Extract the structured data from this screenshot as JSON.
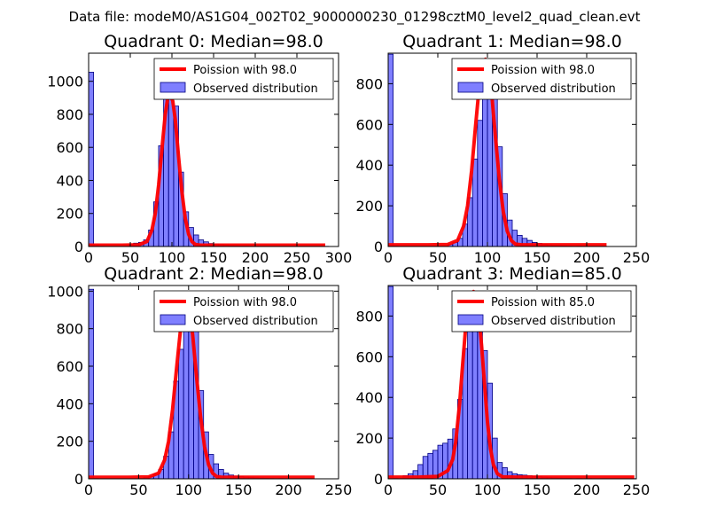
{
  "figure": {
    "suptitle": "Data file: modeM0/AS1G04_002T02_9000000230_01298cztM0_level2_quad_clean.evt"
  },
  "colors": {
    "bar_fill": "#0000ff",
    "bar_edge": "#000080",
    "poisson_line": "#ff0000",
    "axes_edge": "#000000",
    "text": "#000000"
  },
  "chart_data": [
    {
      "type": "bar",
      "title": "Quadrant 0: Median=98.0",
      "median": 98.0,
      "xlim": [
        0,
        300
      ],
      "ylim": [
        0,
        1170
      ],
      "xticks": [
        0,
        50,
        100,
        150,
        200,
        250,
        300
      ],
      "yticks": [
        0,
        200,
        400,
        600,
        800,
        1000
      ],
      "bin_width": 6,
      "bins": [
        [
          0,
          1055
        ],
        [
          6,
          5
        ],
        [
          12,
          2
        ],
        [
          48,
          10
        ],
        [
          54,
          20
        ],
        [
          60,
          25
        ],
        [
          66,
          40
        ],
        [
          72,
          100
        ],
        [
          78,
          270
        ],
        [
          84,
          610
        ],
        [
          90,
          950
        ],
        [
          96,
          990
        ],
        [
          102,
          850
        ],
        [
          108,
          450
        ],
        [
          114,
          210
        ],
        [
          120,
          115
        ],
        [
          126,
          70
        ],
        [
          132,
          40
        ],
        [
          138,
          28
        ],
        [
          144,
          18
        ],
        [
          150,
          15
        ],
        [
          156,
          12
        ],
        [
          162,
          8
        ],
        [
          168,
          5
        ],
        [
          174,
          4
        ],
        [
          180,
          3
        ],
        [
          186,
          3
        ],
        [
          192,
          2
        ],
        [
          198,
          2
        ],
        [
          210,
          1
        ],
        [
          234,
          1
        ],
        [
          282,
          1
        ]
      ],
      "poisson": {
        "x": [
          0,
          40,
          60,
          70,
          76,
          80,
          84,
          88,
          92,
          95,
          98,
          101,
          104,
          108,
          112,
          116,
          120,
          124,
          128,
          134,
          140,
          160,
          200,
          284
        ],
        "y": [
          8,
          8,
          10,
          30,
          100,
          200,
          370,
          590,
          800,
          900,
          920,
          880,
          770,
          540,
          330,
          170,
          75,
          30,
          12,
          8,
          8,
          8,
          8,
          8
        ]
      },
      "legend": [
        "Poission with 98.0",
        "Observed distribution"
      ]
    },
    {
      "type": "bar",
      "title": "Quadrant 1: Median=98.0",
      "median": 98.0,
      "xlim": [
        0,
        250
      ],
      "ylim": [
        0,
        950
      ],
      "xticks": [
        0,
        50,
        100,
        150,
        200,
        250
      ],
      "yticks": [
        0,
        200,
        400,
        600,
        800
      ],
      "bin_width": 5,
      "bins": [
        [
          0,
          945
        ],
        [
          5,
          3
        ],
        [
          60,
          10
        ],
        [
          65,
          20
        ],
        [
          70,
          40
        ],
        [
          75,
          110
        ],
        [
          80,
          240
        ],
        [
          85,
          430
        ],
        [
          90,
          620
        ],
        [
          95,
          780
        ],
        [
          100,
          910
        ],
        [
          105,
          800
        ],
        [
          110,
          490
        ],
        [
          115,
          260
        ],
        [
          120,
          130
        ],
        [
          125,
          80
        ],
        [
          130,
          55
        ],
        [
          135,
          40
        ],
        [
          140,
          30
        ],
        [
          145,
          20
        ],
        [
          150,
          15
        ],
        [
          155,
          10
        ],
        [
          160,
          8
        ],
        [
          165,
          5
        ],
        [
          170,
          4
        ],
        [
          175,
          3
        ],
        [
          180,
          2
        ],
        [
          190,
          2
        ],
        [
          215,
          1
        ]
      ],
      "poisson": {
        "x": [
          0,
          40,
          60,
          70,
          76,
          80,
          84,
          88,
          92,
          95,
          98,
          101,
          104,
          108,
          112,
          116,
          120,
          124,
          128,
          134,
          140,
          160,
          200,
          220
        ],
        "y": [
          8,
          8,
          10,
          30,
          100,
          200,
          370,
          590,
          800,
          900,
          920,
          880,
          770,
          540,
          330,
          170,
          75,
          30,
          12,
          8,
          8,
          8,
          8,
          8
        ]
      },
      "legend": [
        "Poission with 98.0",
        "Observed distribution"
      ]
    },
    {
      "type": "bar",
      "title": "Quadrant 2: Median=98.0",
      "median": 98.0,
      "xlim": [
        0,
        250
      ],
      "ylim": [
        0,
        1030
      ],
      "xticks": [
        0,
        50,
        100,
        150,
        200,
        250
      ],
      "yticks": [
        0,
        200,
        400,
        600,
        800,
        1000
      ],
      "bin_width": 5,
      "bins": [
        [
          0,
          1010
        ],
        [
          5,
          3
        ],
        [
          55,
          8
        ],
        [
          60,
          12
        ],
        [
          65,
          25
        ],
        [
          70,
          50
        ],
        [
          75,
          120
        ],
        [
          80,
          250
        ],
        [
          85,
          520
        ],
        [
          90,
          690
        ],
        [
          95,
          850
        ],
        [
          100,
          950
        ],
        [
          105,
          810
        ],
        [
          110,
          470
        ],
        [
          115,
          250
        ],
        [
          120,
          130
        ],
        [
          125,
          80
        ],
        [
          130,
          50
        ],
        [
          135,
          30
        ],
        [
          140,
          20
        ],
        [
          145,
          15
        ],
        [
          150,
          12
        ],
        [
          155,
          9
        ],
        [
          160,
          8
        ],
        [
          165,
          5
        ],
        [
          170,
          4
        ],
        [
          175,
          3
        ],
        [
          180,
          2
        ],
        [
          190,
          2
        ],
        [
          220,
          1
        ]
      ],
      "poisson": {
        "x": [
          0,
          40,
          60,
          70,
          76,
          80,
          84,
          88,
          92,
          95,
          98,
          101,
          104,
          108,
          112,
          116,
          120,
          124,
          128,
          134,
          140,
          160,
          200,
          226
        ],
        "y": [
          8,
          8,
          10,
          30,
          100,
          200,
          370,
          590,
          800,
          900,
          920,
          880,
          770,
          540,
          330,
          170,
          75,
          30,
          12,
          8,
          8,
          8,
          8,
          8
        ]
      },
      "legend": [
        "Poission with 98.0",
        "Observed distribution"
      ]
    },
    {
      "type": "bar",
      "title": "Quadrant 3: Median=85.0",
      "median": 85.0,
      "xlim": [
        0,
        250
      ],
      "ylim": [
        0,
        950
      ],
      "xticks": [
        0,
        50,
        100,
        150,
        200,
        250
      ],
      "yticks": [
        0,
        200,
        400,
        600,
        800
      ],
      "bin_width": 5,
      "bins": [
        [
          0,
          945
        ],
        [
          5,
          3
        ],
        [
          15,
          15
        ],
        [
          20,
          25
        ],
        [
          25,
          40
        ],
        [
          30,
          70
        ],
        [
          35,
          110
        ],
        [
          40,
          125
        ],
        [
          45,
          140
        ],
        [
          50,
          165
        ],
        [
          55,
          175
        ],
        [
          60,
          195
        ],
        [
          65,
          245
        ],
        [
          70,
          390
        ],
        [
          75,
          640
        ],
        [
          80,
          790
        ],
        [
          85,
          880
        ],
        [
          90,
          800
        ],
        [
          95,
          630
        ],
        [
          100,
          470
        ],
        [
          105,
          200
        ],
        [
          110,
          80
        ],
        [
          115,
          55
        ],
        [
          120,
          35
        ],
        [
          125,
          25
        ],
        [
          130,
          20
        ],
        [
          135,
          18
        ],
        [
          140,
          15
        ],
        [
          145,
          12
        ],
        [
          150,
          10
        ],
        [
          155,
          8
        ],
        [
          160,
          6
        ],
        [
          165,
          5
        ],
        [
          170,
          4
        ],
        [
          175,
          3
        ],
        [
          180,
          3
        ],
        [
          190,
          2
        ],
        [
          200,
          2
        ],
        [
          215,
          1
        ],
        [
          245,
          1
        ]
      ],
      "poisson": {
        "x": [
          0,
          30,
          50,
          60,
          65,
          68,
          72,
          75,
          78,
          81,
          84,
          86,
          88,
          91,
          94,
          97,
          100,
          103,
          106,
          110,
          115,
          130,
          200,
          248
        ],
        "y": [
          8,
          8,
          12,
          40,
          95,
          180,
          370,
          560,
          740,
          860,
          910,
          920,
          900,
          820,
          660,
          470,
          280,
          150,
          70,
          25,
          10,
          8,
          8,
          8
        ]
      },
      "legend": [
        "Poission with 85.0",
        "Observed distribution"
      ]
    }
  ]
}
